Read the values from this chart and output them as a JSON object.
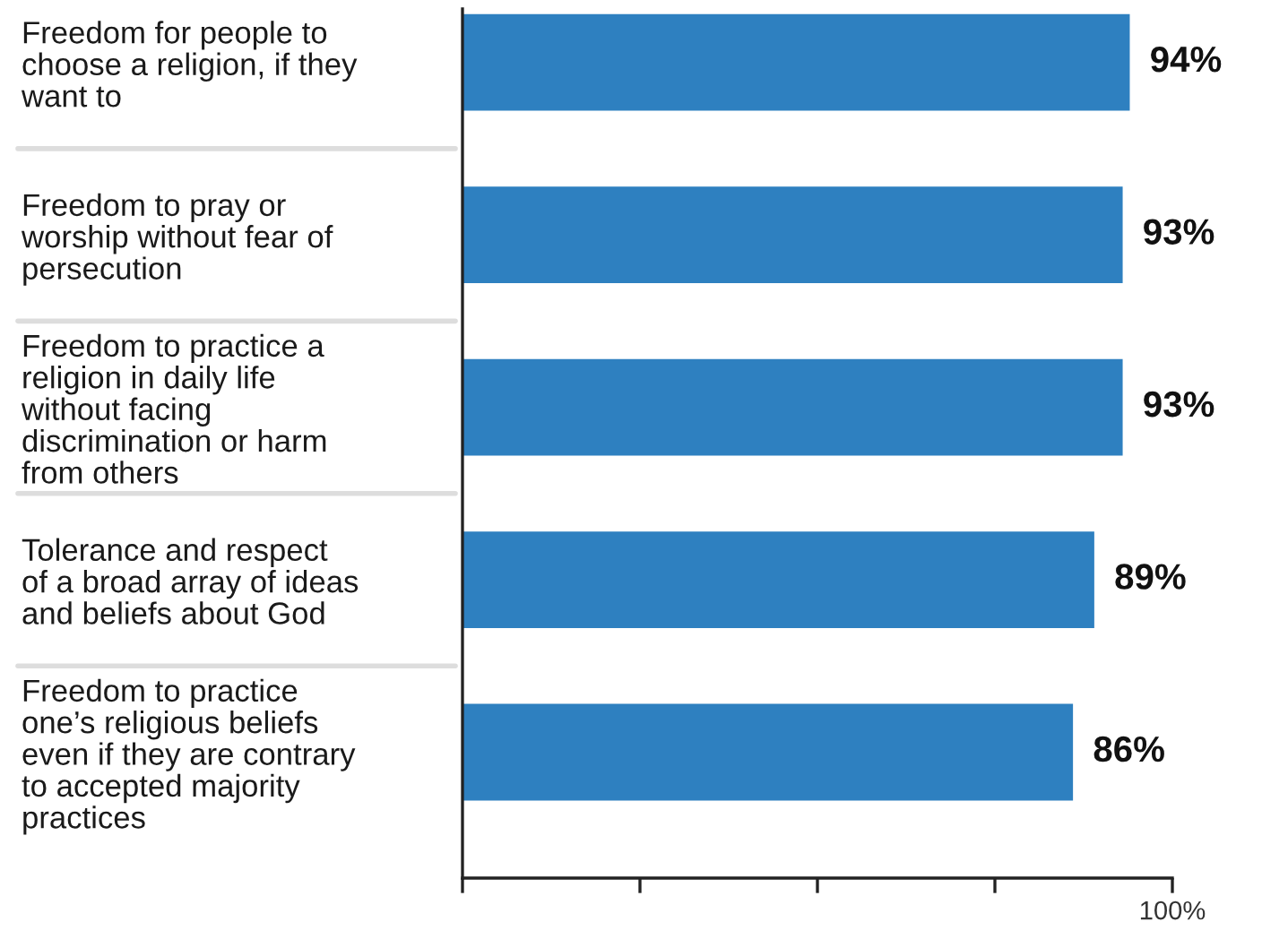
{
  "chart_data": {
    "type": "bar",
    "orientation": "horizontal",
    "categories": [
      "Freedom for people to\nchoose a religion, if they\nwant to",
      "Freedom to pray or\nworship without fear of\npersecution",
      "Freedom to practice a\nreligion in daily life\nwithout facing\ndiscrimination or harm\nfrom others",
      "Tolerance and respect\nof a broad array of ideas\nand beliefs about God",
      "Freedom to practice\none’s religious beliefs\neven if they are contrary\nto accepted majority\npractices"
    ],
    "values": [
      94,
      93,
      93,
      89,
      86
    ],
    "value_labels": [
      "94%",
      "93%",
      "93%",
      "89%",
      "86%"
    ],
    "color": "#2e80c0",
    "xlim": [
      0,
      100
    ],
    "xticks": [
      {
        "value": 0,
        "label": null
      },
      {
        "value": 25,
        "label": null
      },
      {
        "value": 50,
        "label": null
      },
      {
        "value": 75,
        "label": null
      },
      {
        "value": 100,
        "label": "100%"
      }
    ]
  }
}
